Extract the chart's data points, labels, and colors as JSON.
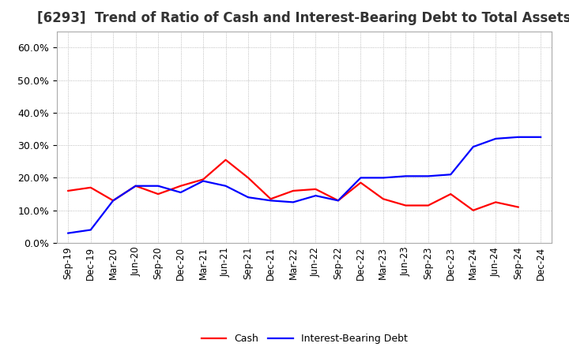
{
  "title": "[6293]  Trend of Ratio of Cash and Interest-Bearing Debt to Total Assets",
  "x_labels": [
    "Sep-19",
    "Dec-19",
    "Mar-20",
    "Jun-20",
    "Sep-20",
    "Dec-20",
    "Mar-21",
    "Jun-21",
    "Sep-21",
    "Dec-21",
    "Mar-22",
    "Jun-22",
    "Sep-22",
    "Dec-22",
    "Mar-23",
    "Jun-23",
    "Sep-23",
    "Dec-23",
    "Mar-24",
    "Jun-24",
    "Sep-24",
    "Dec-24"
  ],
  "cash": [
    0.16,
    0.17,
    0.13,
    0.175,
    0.15,
    0.175,
    0.195,
    0.255,
    0.2,
    0.135,
    0.16,
    0.165,
    0.13,
    0.185,
    0.135,
    0.115,
    0.115,
    0.15,
    0.1,
    0.125,
    0.11,
    null
  ],
  "interest_bearing_debt": [
    0.03,
    0.04,
    0.13,
    0.175,
    0.175,
    0.155,
    0.19,
    0.175,
    0.14,
    0.13,
    0.125,
    0.145,
    0.13,
    0.2,
    0.2,
    0.205,
    0.205,
    0.21,
    0.295,
    0.32,
    0.325,
    0.325
  ],
  "cash_color": "#ff0000",
  "debt_color": "#0000ff",
  "ylim": [
    0.0,
    0.65
  ],
  "yticks": [
    0.0,
    0.1,
    0.2,
    0.3,
    0.4,
    0.5,
    0.6
  ],
  "background_color": "#ffffff",
  "plot_bg_color": "#ffffff",
  "grid_color": "#aaaaaa",
  "title_fontsize": 12,
  "legend_cash": "Cash",
  "legend_debt": "Interest-Bearing Debt",
  "line_width": 1.6,
  "tick_fontsize": 8.5,
  "ytick_fontsize": 9
}
